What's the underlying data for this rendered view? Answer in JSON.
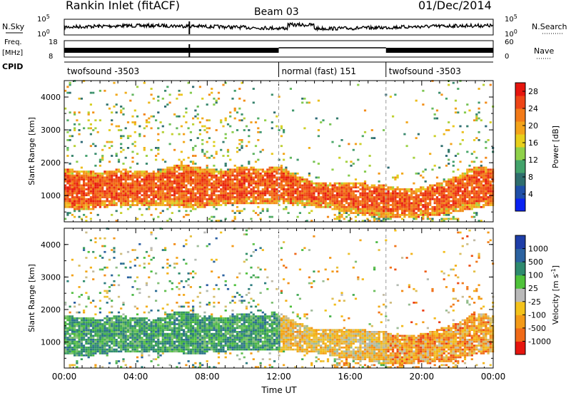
{
  "header": {
    "station": "Rankin Inlet (fitACF)",
    "beam": "Beam 03",
    "date": "01/Dec/2014"
  },
  "noise_panel": {
    "left_label": "N.Sky",
    "right_label": "N.Search",
    "left_ticks": [
      "10^5",
      "10^0"
    ],
    "right_ticks": [
      "10^5",
      "10^0"
    ]
  },
  "freq_panel": {
    "left_label_1": "Freq.",
    "left_label_2": "[MHz]",
    "right_label": "Nave",
    "left_ticks": [
      "18",
      "8"
    ],
    "right_ticks": [
      "60",
      "0"
    ]
  },
  "cpid": {
    "label": "CPID",
    "segments": [
      {
        "start_hour": 0,
        "end_hour": 12,
        "name": "twofsound -3503"
      },
      {
        "start_hour": 12,
        "end_hour": 18,
        "name": "normal (fast) 151"
      },
      {
        "start_hour": 18,
        "end_hour": 24,
        "name": "twofsound -3503"
      }
    ]
  },
  "chart_data": [
    {
      "type": "heatmap",
      "title": "",
      "xlabel": "",
      "ylabel": "Slant Range [km]",
      "xlim": [
        0,
        24
      ],
      "ylim": [
        200,
        4500
      ],
      "y_ticks": [
        "1000",
        "2000",
        "3000",
        "4000"
      ],
      "colorbar": {
        "label": "Power [dB]",
        "ticks": [
          "4",
          "8",
          "12",
          "16",
          "20",
          "24",
          "28"
        ],
        "range": [
          0,
          30
        ],
        "colors": [
          "#0a22f2",
          "#1f4fa8",
          "#2f6e6e",
          "#43a36b",
          "#8fd14a",
          "#e7cf1b",
          "#f3a31a",
          "#f27a18",
          "#ee4516",
          "#e6150e"
        ]
      },
      "main_band": [
        {
          "hour": 0.0,
          "lo": 700,
          "hi": 1700
        },
        {
          "hour": 1.0,
          "lo": 650,
          "hi": 1650
        },
        {
          "hour": 2.0,
          "lo": 700,
          "hi": 1600
        },
        {
          "hour": 3.0,
          "lo": 800,
          "hi": 1700
        },
        {
          "hour": 4.0,
          "lo": 750,
          "hi": 1650
        },
        {
          "hour": 5.0,
          "lo": 750,
          "hi": 1600
        },
        {
          "hour": 6.0,
          "lo": 800,
          "hi": 1800
        },
        {
          "hour": 7.0,
          "lo": 700,
          "hi": 1800
        },
        {
          "hour": 8.0,
          "lo": 750,
          "hi": 1700
        },
        {
          "hour": 9.0,
          "lo": 800,
          "hi": 1650
        },
        {
          "hour": 10.0,
          "lo": 850,
          "hi": 1800
        },
        {
          "hour": 11.0,
          "lo": 800,
          "hi": 1700
        },
        {
          "hour": 12.0,
          "lo": 850,
          "hi": 1800
        },
        {
          "hour": 13.0,
          "lo": 800,
          "hi": 1500
        },
        {
          "hour": 14.0,
          "lo": 750,
          "hi": 1300
        },
        {
          "hour": 15.0,
          "lo": 650,
          "hi": 1300
        },
        {
          "hour": 16.0,
          "lo": 550,
          "hi": 1300
        },
        {
          "hour": 17.0,
          "lo": 500,
          "hi": 1250
        },
        {
          "hour": 18.0,
          "lo": 400,
          "hi": 1200
        },
        {
          "hour": 19.0,
          "lo": 400,
          "hi": 1100
        },
        {
          "hour": 20.0,
          "lo": 450,
          "hi": 1150
        },
        {
          "hour": 21.0,
          "lo": 500,
          "hi": 1300
        },
        {
          "hour": 22.0,
          "lo": 600,
          "hi": 1500
        },
        {
          "hour": 23.0,
          "lo": 700,
          "hi": 1800
        },
        {
          "hour": 24.0,
          "lo": 800,
          "hi": 1700
        }
      ]
    },
    {
      "type": "heatmap",
      "title": "",
      "xlabel": "Time UT",
      "ylabel": "Slant Range [km]",
      "xlim": [
        0,
        24
      ],
      "ylim": [
        200,
        4500
      ],
      "y_ticks": [
        "1000",
        "2000",
        "3000",
        "4000"
      ],
      "x_ticks": [
        "00:00",
        "04:00",
        "08:00",
        "12:00",
        "16:00",
        "20:00",
        "00:00"
      ],
      "colorbar": {
        "label": "Velocity [m s^-1]",
        "ticks": [
          "1000",
          "500",
          "100",
          "25",
          "-25",
          "-100",
          "-500",
          "-1000"
        ],
        "colors": [
          "#1e3ea8",
          "#2b62a0",
          "#2e8a6e",
          "#4fc23a",
          "#b9b9b9",
          "#f3c21b",
          "#f39a18",
          "#f06a18",
          "#e6150e"
        ]
      }
    }
  ]
}
